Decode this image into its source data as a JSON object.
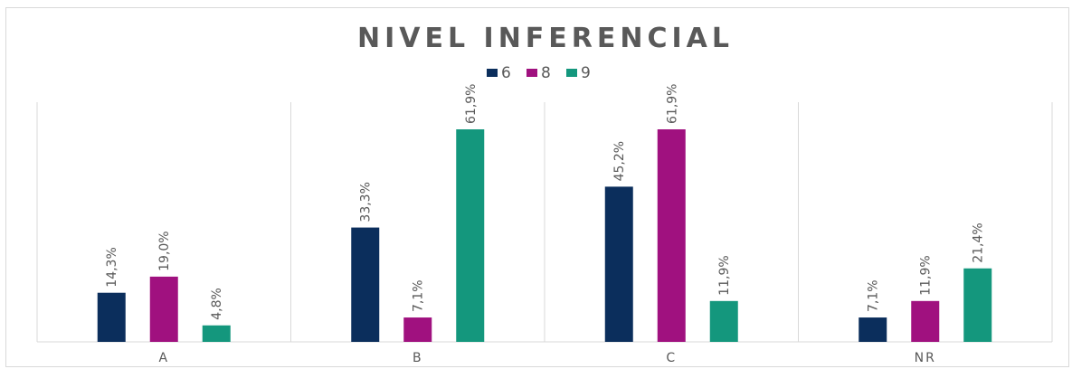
{
  "chart_data": {
    "type": "bar",
    "title": "NIVEL INFERENCIAL",
    "categories": [
      "A",
      "B",
      "C",
      "NR"
    ],
    "series": [
      {
        "name": "6",
        "color": "#0b2e5c",
        "values": [
          14.3,
          33.3,
          45.2,
          7.1
        ],
        "labels": [
          "14,3%",
          "33,3%",
          "45,2%",
          "7,1%"
        ]
      },
      {
        "name": "8",
        "color": "#a0117f",
        "values": [
          19.0,
          7.1,
          61.9,
          11.9
        ],
        "labels": [
          "19,0%",
          "7,1%",
          "61,9%",
          "11,9%"
        ]
      },
      {
        "name": "9",
        "color": "#14977d",
        "values": [
          4.8,
          61.9,
          11.9,
          21.4
        ],
        "labels": [
          "4,8%",
          "61,9%",
          "11,9%",
          "21,4%"
        ]
      }
    ],
    "ylim": [
      0,
      61.9
    ],
    "grid": "vertical category separators",
    "legend": "top-center"
  }
}
